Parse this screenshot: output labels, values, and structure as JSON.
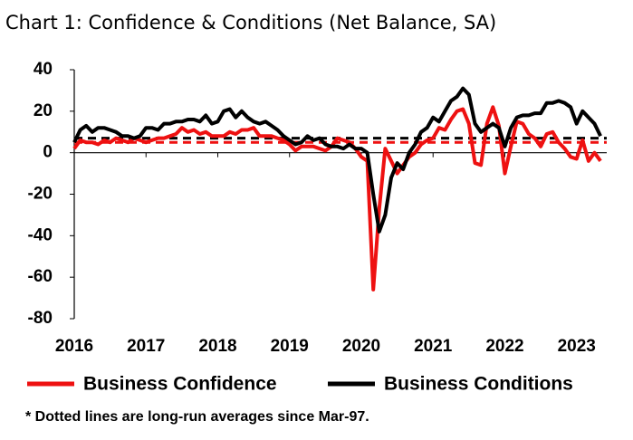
{
  "chart_data": {
    "type": "line",
    "title": "Chart 1: Confidence & Conditions (Net Balance, SA)",
    "note": "* Dotted lines are long-run averages since Mar-97.",
    "x_start": 2016,
    "x_step": 0.08333333333333333,
    "xlim": [
      2016,
      2023.42
    ],
    "xticks": [
      2016,
      2017,
      2018,
      2019,
      2020,
      2021,
      2022,
      2023
    ],
    "ylim": [
      -80,
      40
    ],
    "yticks": [
      -80,
      -60,
      -40,
      -20,
      0,
      20,
      40
    ],
    "series": [
      {
        "name": "Business Confidence",
        "color": "#ee1111",
        "average": 5,
        "values": [
          2,
          6,
          5,
          5,
          4,
          6,
          5,
          7,
          6,
          5,
          7,
          6,
          5,
          6,
          7,
          7,
          8,
          9,
          12,
          10,
          11,
          9,
          10,
          8,
          8,
          8,
          10,
          9,
          11,
          11,
          12,
          8,
          8,
          8,
          7,
          6,
          4,
          1,
          3,
          3,
          3,
          2,
          1,
          3,
          7,
          6,
          5,
          2,
          -2,
          -4,
          -66,
          -27,
          2,
          -4,
          -10,
          -6,
          -2,
          0,
          4,
          6,
          7,
          12,
          11,
          16,
          20,
          21,
          14,
          -5,
          -6,
          14,
          22,
          13,
          -10,
          3,
          15,
          14,
          9,
          7,
          3,
          9,
          10,
          5,
          2,
          -2,
          -3,
          6,
          -4,
          0,
          -4
        ]
      },
      {
        "name": "Business Conditions",
        "color": "#000000",
        "average": 7,
        "values": [
          5,
          11,
          13,
          10,
          12,
          12,
          11,
          10,
          8,
          8,
          7,
          8,
          12,
          12,
          11,
          14,
          14,
          15,
          15,
          16,
          16,
          15,
          18,
          14,
          15,
          20,
          21,
          17,
          20,
          17,
          15,
          14,
          15,
          13,
          11,
          8,
          6,
          4,
          5,
          8,
          6,
          7,
          4,
          3,
          3,
          2,
          4,
          2,
          2,
          0,
          -20,
          -38,
          -30,
          -12,
          -5,
          -8,
          0,
          4,
          10,
          12,
          17,
          15,
          20,
          25,
          27,
          31,
          28,
          14,
          10,
          12,
          14,
          12,
          3,
          12,
          17,
          18,
          18,
          19,
          19,
          24,
          24,
          25,
          24,
          22,
          14,
          20,
          17,
          14,
          8
        ]
      }
    ]
  }
}
